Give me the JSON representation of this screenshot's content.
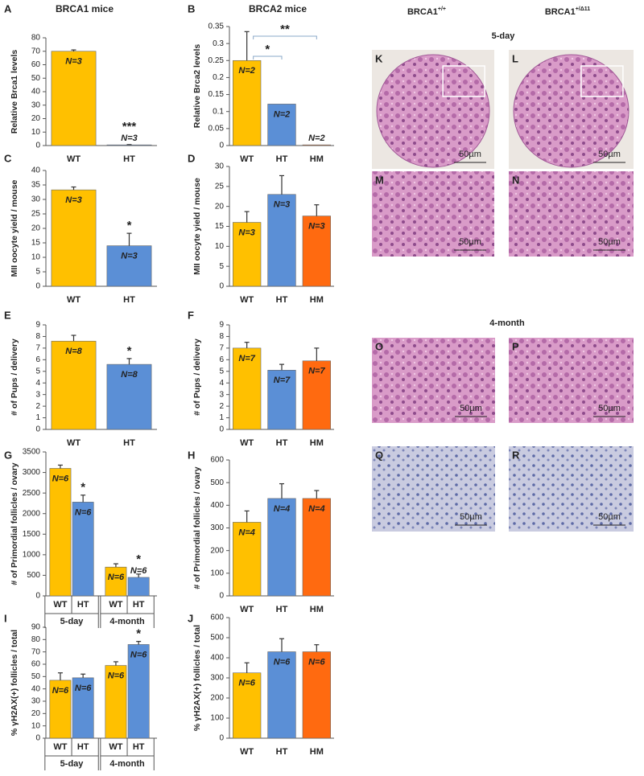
{
  "chart_data": [
    {
      "type": "bar",
      "panel": "A",
      "title": "BRCA1 mice",
      "ylabel": "Relative Brca1 levels",
      "categories": [
        "WT",
        "HT"
      ],
      "values": [
        70,
        0.5
      ],
      "errors": [
        1,
        0.2
      ],
      "colors": [
        "#ffc000",
        "#5b8fd6"
      ],
      "n_labels": [
        "N=3",
        "N=3"
      ],
      "significance": [
        null,
        "***"
      ],
      "ylim": [
        0,
        80
      ],
      "yticks": [
        0,
        10,
        20,
        30,
        40,
        50,
        60,
        70,
        80
      ]
    },
    {
      "type": "bar",
      "panel": "B",
      "title": "BRCA2 mice",
      "ylabel": "Relative Brca2 levels",
      "categories": [
        "WT",
        "HT",
        "HM"
      ],
      "values": [
        0.25,
        0.122,
        0.002
      ],
      "errors": [
        0.085,
        null,
        null
      ],
      "colors": [
        "#ffc000",
        "#5b8fd6",
        "#ff6a10"
      ],
      "n_labels": [
        "N=2",
        "N=2",
        "N=2"
      ],
      "brackets": [
        {
          "from": "WT",
          "to": "HT",
          "text": "*"
        },
        {
          "from": "WT",
          "to": "HM",
          "text": "**"
        }
      ],
      "ylim": [
        0,
        0.35
      ],
      "yticks": [
        0,
        0.05,
        0.1,
        0.15,
        0.2,
        0.25,
        0.3,
        0.35
      ]
    },
    {
      "type": "bar",
      "panel": "C",
      "ylabel": "MII oocyte yield / mouse",
      "categories": [
        "WT",
        "HT"
      ],
      "values": [
        33.3,
        14
      ],
      "errors": [
        1,
        4.3
      ],
      "colors": [
        "#ffc000",
        "#5b8fd6"
      ],
      "n_labels": [
        "N=3",
        "N=3"
      ],
      "significance": [
        null,
        "*"
      ],
      "ylim": [
        0,
        40
      ],
      "yticks": [
        0,
        5,
        10,
        15,
        20,
        25,
        30,
        35,
        40
      ]
    },
    {
      "type": "bar",
      "panel": "D",
      "ylabel": "MII oocyte yield / mouse",
      "categories": [
        "WT",
        "HT",
        "HM"
      ],
      "values": [
        16,
        23,
        17.6
      ],
      "errors": [
        2.7,
        4.7,
        2.8
      ],
      "colors": [
        "#ffc000",
        "#5b8fd6",
        "#ff6a10"
      ],
      "n_labels": [
        "N=3",
        "N=3",
        "N=3"
      ],
      "ylim": [
        0,
        30
      ],
      "yticks": [
        0,
        5,
        10,
        15,
        20,
        25,
        30
      ]
    },
    {
      "type": "bar",
      "panel": "E",
      "ylabel": "# of Pups / delivery",
      "categories": [
        "WT",
        "HT"
      ],
      "values": [
        7.6,
        5.6
      ],
      "errors": [
        0.5,
        0.5
      ],
      "colors": [
        "#ffc000",
        "#5b8fd6"
      ],
      "n_labels": [
        "N=8",
        "N=8"
      ],
      "significance": [
        null,
        "*"
      ],
      "ylim": [
        0,
        9
      ],
      "yticks": [
        0,
        1,
        2,
        3,
        4,
        5,
        6,
        7,
        8,
        9
      ]
    },
    {
      "type": "bar",
      "panel": "F",
      "ylabel": "# of Pups / delivery",
      "categories": [
        "WT",
        "HT",
        "HM"
      ],
      "values": [
        7.0,
        5.1,
        5.9
      ],
      "errors": [
        0.5,
        0.5,
        1.1
      ],
      "colors": [
        "#ffc000",
        "#5b8fd6",
        "#ff6a10"
      ],
      "n_labels": [
        "N=7",
        "N=7",
        "N=7"
      ],
      "ylim": [
        0,
        9
      ],
      "yticks": [
        0,
        1,
        2,
        3,
        4,
        5,
        6,
        7,
        8,
        9
      ]
    },
    {
      "type": "bar",
      "panel": "G",
      "ylabel": "# of Primordial follicles / ovary",
      "categories": [
        "WT",
        "HT",
        "WT",
        "HT"
      ],
      "groups": [
        "5-day",
        "4-month"
      ],
      "values": [
        3100,
        2280,
        700,
        450
      ],
      "errors": [
        80,
        170,
        80,
        80
      ],
      "colors": [
        "#ffc000",
        "#5b8fd6",
        "#ffc000",
        "#5b8fd6"
      ],
      "n_labels": [
        "N=6",
        "N=6",
        "N=6",
        "N=6"
      ],
      "significance": [
        null,
        "*",
        null,
        "*"
      ],
      "ylim": [
        0,
        3500
      ],
      "yticks": [
        0,
        500,
        1000,
        1500,
        2000,
        2500,
        3000,
        3500
      ]
    },
    {
      "type": "bar",
      "panel": "H",
      "ylabel": "# of Primordial follicles / ovary",
      "categories": [
        "WT",
        "HT",
        "HM"
      ],
      "values": [
        325,
        430,
        430
      ],
      "errors": [
        50,
        65,
        35
      ],
      "colors": [
        "#ffc000",
        "#5b8fd6",
        "#ff6a10"
      ],
      "n_labels": [
        "N=4",
        "N=4",
        "N=4"
      ],
      "ylim": [
        0,
        600
      ],
      "yticks": [
        0,
        100,
        200,
        300,
        400,
        500,
        600
      ]
    },
    {
      "type": "bar",
      "panel": "I",
      "ylabel": "% γH2AX(+) follicles / total",
      "categories": [
        "WT",
        "HT",
        "WT",
        "HT"
      ],
      "groups": [
        "5-day",
        "4-month"
      ],
      "values": [
        47,
        49,
        59,
        76
      ],
      "errors": [
        6,
        3,
        3,
        2.5
      ],
      "colors": [
        "#ffc000",
        "#5b8fd6",
        "#ffc000",
        "#5b8fd6"
      ],
      "n_labels": [
        "N=6",
        "N=6",
        "N=6",
        "N=6"
      ],
      "significance": [
        null,
        null,
        null,
        "*"
      ],
      "ylim": [
        0,
        90
      ],
      "yticks": [
        0,
        10,
        20,
        30,
        40,
        50,
        60,
        70,
        80,
        90
      ]
    },
    {
      "type": "bar",
      "panel": "J",
      "ylabel": "% γH2AX(+) follicles / total",
      "categories": [
        "WT",
        "HT",
        "HM"
      ],
      "values": [
        325,
        430,
        430
      ],
      "errors": [
        50,
        65,
        35
      ],
      "colors": [
        "#ffc000",
        "#5b8fd6",
        "#ff6a10"
      ],
      "n_labels": [
        "N=6",
        "N=6",
        "N=6"
      ],
      "ylim": [
        0,
        600
      ],
      "yticks": [
        0,
        100,
        200,
        300,
        400,
        500,
        600
      ]
    }
  ],
  "micrographs": {
    "columns": [
      {
        "base": "BRCA1",
        "sup": "+/+"
      },
      {
        "base": "BRCA1",
        "sup": "+/Δ11"
      }
    ],
    "sections": [
      "5-day",
      "4-month"
    ],
    "panels": [
      {
        "label": "K",
        "scale_bar": "50µm"
      },
      {
        "label": "L",
        "scale_bar": "50µm"
      },
      {
        "label": "M",
        "scale_bar": "50µm"
      },
      {
        "label": "N",
        "scale_bar": "50µm"
      },
      {
        "label": "O",
        "scale_bar": "50µm"
      },
      {
        "label": "P",
        "scale_bar": "50µm"
      },
      {
        "label": "Q",
        "scale_bar": "50µm"
      },
      {
        "label": "R",
        "scale_bar": "50µm"
      }
    ]
  }
}
